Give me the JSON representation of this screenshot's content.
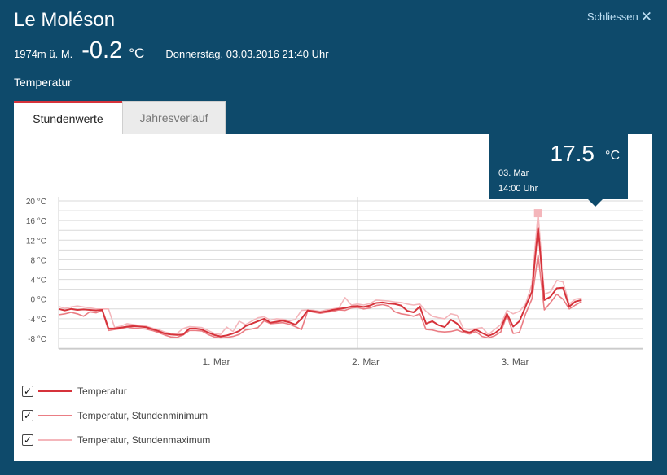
{
  "header": {
    "station": "Le Moléson",
    "close_label": "Schliessen",
    "close_icon": "✕",
    "altitude": "1974m ü. M.",
    "current_temp": "-0.2",
    "unit": "°C",
    "datetime": "Donnerstag, 03.03.2016 21:40 Uhr",
    "parameter": "Temperatur"
  },
  "tabs": [
    {
      "label": "Stundenwerte",
      "active": true
    },
    {
      "label": "Jahresverlauf",
      "active": false
    }
  ],
  "tooltip": {
    "value": "17.5",
    "unit": "°C",
    "date": "03. Mar",
    "time": "14:00 Uhr"
  },
  "legend": [
    {
      "label": "Temperatur",
      "checked": true,
      "color": "#d6333b"
    },
    {
      "label": "Temperatur, Stundenminimum",
      "checked": true,
      "color": "#ea7d84"
    },
    {
      "label": "Temperatur, Stundenmaximum",
      "checked": true,
      "color": "#f4b6bb"
    }
  ],
  "chart_data": {
    "type": "line",
    "x_unit": "hours since 29. Feb 00:00",
    "y_ticks": [
      "20 °C",
      "16 °C",
      "12 °C",
      "8 °C",
      "4 °C",
      "0 °C",
      "-4 °C",
      "-8 °C"
    ],
    "y_tick_values": [
      20,
      16,
      12,
      8,
      4,
      0,
      -4,
      -8
    ],
    "ylim": [
      -11,
      22
    ],
    "xlim": [
      0,
      86
    ],
    "x_ticks": [
      {
        "label": "1. Mar",
        "x": 24
      },
      {
        "label": "2. Mar",
        "x": 48
      },
      {
        "label": "3. Mar",
        "x": 72
      }
    ],
    "vertical_gridlines": [
      0,
      24,
      48,
      72
    ],
    "highlight": {
      "x": 86,
      "y": 17.5
    },
    "series": [
      {
        "name": "Temperatur",
        "color": "#d6333b",
        "values": [
          [
            0,
            -2.0
          ],
          [
            1,
            -2.3
          ],
          [
            2,
            -2.0
          ],
          [
            3,
            -2.2
          ],
          [
            4,
            -2.1
          ],
          [
            5,
            -2.2
          ],
          [
            6,
            -2.3
          ],
          [
            7,
            -2.2
          ],
          [
            8,
            -6.0
          ],
          [
            9,
            -6.0
          ],
          [
            10,
            -5.8
          ],
          [
            11,
            -5.6
          ],
          [
            12,
            -5.5
          ],
          [
            13,
            -5.6
          ],
          [
            14,
            -5.7
          ],
          [
            15,
            -6.1
          ],
          [
            16,
            -6.5
          ],
          [
            17,
            -7.0
          ],
          [
            18,
            -7.2
          ],
          [
            19,
            -7.3
          ],
          [
            20,
            -7.2
          ],
          [
            21,
            -6.0
          ],
          [
            22,
            -6.0
          ],
          [
            23,
            -6.2
          ],
          [
            24,
            -6.8
          ],
          [
            25,
            -7.3
          ],
          [
            26,
            -7.6
          ],
          [
            27,
            -7.4
          ],
          [
            28,
            -7.0
          ],
          [
            29,
            -6.5
          ],
          [
            30,
            -5.5
          ],
          [
            31,
            -5.0
          ],
          [
            32,
            -4.5
          ],
          [
            33,
            -4.0
          ],
          [
            34,
            -4.8
          ],
          [
            35,
            -4.6
          ],
          [
            36,
            -4.4
          ],
          [
            37,
            -4.7
          ],
          [
            38,
            -5.2
          ],
          [
            39,
            -4.0
          ],
          [
            40,
            -2.3
          ],
          [
            41,
            -2.5
          ],
          [
            42,
            -2.7
          ],
          [
            43,
            -2.5
          ],
          [
            44,
            -2.2
          ],
          [
            45,
            -2.0
          ],
          [
            46,
            -1.8
          ],
          [
            47,
            -1.5
          ],
          [
            48,
            -1.4
          ],
          [
            49,
            -1.6
          ],
          [
            50,
            -1.3
          ],
          [
            51,
            -0.8
          ],
          [
            52,
            -0.7
          ],
          [
            53,
            -0.9
          ],
          [
            54,
            -1.0
          ],
          [
            55,
            -1.3
          ],
          [
            56,
            -2.4
          ],
          [
            57,
            -2.7
          ],
          [
            58,
            -1.5
          ],
          [
            59,
            -5.0
          ],
          [
            60,
            -4.5
          ],
          [
            61,
            -5.3
          ],
          [
            62,
            -5.7
          ],
          [
            63,
            -4.2
          ],
          [
            64,
            -5.0
          ],
          [
            65,
            -6.5
          ],
          [
            66,
            -6.8
          ],
          [
            67,
            -6.2
          ],
          [
            68,
            -6.9
          ],
          [
            69,
            -7.5
          ],
          [
            70,
            -7.0
          ],
          [
            71,
            -6.0
          ],
          [
            72,
            -3.0
          ],
          [
            73,
            -5.6
          ],
          [
            74,
            -4.5
          ],
          [
            75,
            -1.5
          ],
          [
            76,
            1.5
          ],
          [
            77,
            14.5
          ],
          [
            78,
            -0.2
          ],
          [
            79,
            0.5
          ],
          [
            80,
            2.2
          ],
          [
            81,
            2.3
          ],
          [
            82,
            -1.5
          ],
          [
            83,
            -0.5
          ],
          [
            84,
            -0.2
          ]
        ]
      },
      {
        "name": "Temperatur, Stundenminimum",
        "color": "#ea7d84",
        "values": [
          [
            0,
            -3.2
          ],
          [
            1,
            -3.0
          ],
          [
            2,
            -2.7
          ],
          [
            3,
            -3.0
          ],
          [
            4,
            -3.5
          ],
          [
            5,
            -2.6
          ],
          [
            6,
            -2.8
          ],
          [
            7,
            -2.3
          ],
          [
            8,
            -6.4
          ],
          [
            9,
            -6.2
          ],
          [
            10,
            -6.0
          ],
          [
            11,
            -5.7
          ],
          [
            12,
            -5.9
          ],
          [
            13,
            -6.0
          ],
          [
            14,
            -6.1
          ],
          [
            15,
            -6.4
          ],
          [
            16,
            -6.8
          ],
          [
            17,
            -7.3
          ],
          [
            18,
            -7.7
          ],
          [
            19,
            -7.8
          ],
          [
            20,
            -7.3
          ],
          [
            21,
            -6.4
          ],
          [
            22,
            -6.4
          ],
          [
            23,
            -6.5
          ],
          [
            24,
            -7.2
          ],
          [
            25,
            -7.7
          ],
          [
            26,
            -7.9
          ],
          [
            27,
            -7.8
          ],
          [
            28,
            -7.6
          ],
          [
            29,
            -7.2
          ],
          [
            30,
            -6.3
          ],
          [
            31,
            -6.1
          ],
          [
            32,
            -5.8
          ],
          [
            33,
            -4.4
          ],
          [
            34,
            -5.0
          ],
          [
            35,
            -4.9
          ],
          [
            36,
            -4.8
          ],
          [
            37,
            -5.1
          ],
          [
            38,
            -5.6
          ],
          [
            39,
            -6.2
          ],
          [
            40,
            -2.4
          ],
          [
            41,
            -2.7
          ],
          [
            42,
            -2.9
          ],
          [
            43,
            -2.7
          ],
          [
            44,
            -2.5
          ],
          [
            45,
            -2.2
          ],
          [
            46,
            -2.3
          ],
          [
            47,
            -1.8
          ],
          [
            48,
            -1.7
          ],
          [
            49,
            -2.0
          ],
          [
            50,
            -1.8
          ],
          [
            51,
            -1.3
          ],
          [
            52,
            -1.1
          ],
          [
            53,
            -1.4
          ],
          [
            54,
            -2.6
          ],
          [
            55,
            -3.0
          ],
          [
            56,
            -3.2
          ],
          [
            57,
            -3.5
          ],
          [
            58,
            -3.0
          ],
          [
            59,
            -6.2
          ],
          [
            60,
            -6.3
          ],
          [
            61,
            -6.6
          ],
          [
            62,
            -6.7
          ],
          [
            63,
            -6.6
          ],
          [
            64,
            -6.3
          ],
          [
            65,
            -6.8
          ],
          [
            66,
            -7.1
          ],
          [
            67,
            -6.6
          ],
          [
            68,
            -7.6
          ],
          [
            69,
            -7.9
          ],
          [
            70,
            -7.5
          ],
          [
            71,
            -6.7
          ],
          [
            72,
            -3.3
          ],
          [
            73,
            -7.0
          ],
          [
            74,
            -6.8
          ],
          [
            75,
            -3.0
          ],
          [
            76,
            0.0
          ],
          [
            77,
            9.0
          ],
          [
            78,
            -2.2
          ],
          [
            79,
            -0.7
          ],
          [
            80,
            1.0
          ],
          [
            81,
            0.0
          ],
          [
            82,
            -2.0
          ],
          [
            83,
            -1.2
          ],
          [
            84,
            -0.5
          ]
        ]
      },
      {
        "name": "Temperatur, Stundenmaximum",
        "color": "#f4b6bb",
        "values": [
          [
            0,
            -1.5
          ],
          [
            1,
            -1.9
          ],
          [
            2,
            -1.6
          ],
          [
            3,
            -1.4
          ],
          [
            4,
            -1.6
          ],
          [
            5,
            -1.8
          ],
          [
            6,
            -2.0
          ],
          [
            7,
            -2.0
          ],
          [
            8,
            -2.0
          ],
          [
            9,
            -5.8
          ],
          [
            10,
            -5.5
          ],
          [
            11,
            -5.0
          ],
          [
            12,
            -5.2
          ],
          [
            13,
            -5.4
          ],
          [
            14,
            -5.5
          ],
          [
            15,
            -5.9
          ],
          [
            16,
            -6.2
          ],
          [
            17,
            -6.7
          ],
          [
            18,
            -7.0
          ],
          [
            19,
            -7.0
          ],
          [
            20,
            -6.0
          ],
          [
            21,
            -5.6
          ],
          [
            22,
            -5.7
          ],
          [
            23,
            -5.8
          ],
          [
            24,
            -6.4
          ],
          [
            25,
            -7.0
          ],
          [
            26,
            -7.2
          ],
          [
            27,
            -5.7
          ],
          [
            28,
            -6.6
          ],
          [
            29,
            -4.5
          ],
          [
            30,
            -5.2
          ],
          [
            31,
            -4.5
          ],
          [
            32,
            -3.8
          ],
          [
            33,
            -3.6
          ],
          [
            34,
            -4.3
          ],
          [
            35,
            -4.0
          ],
          [
            36,
            -4.1
          ],
          [
            37,
            -4.4
          ],
          [
            38,
            -4.2
          ],
          [
            39,
            -2.3
          ],
          [
            40,
            -2.2
          ],
          [
            41,
            -2.3
          ],
          [
            42,
            -2.5
          ],
          [
            43,
            -2.2
          ],
          [
            44,
            -2.0
          ],
          [
            45,
            -1.8
          ],
          [
            46,
            0.3
          ],
          [
            47,
            -1.2
          ],
          [
            48,
            -1.0
          ],
          [
            49,
            -1.2
          ],
          [
            50,
            -0.9
          ],
          [
            51,
            -0.2
          ],
          [
            52,
            -0.3
          ],
          [
            53,
            -0.4
          ],
          [
            54,
            -0.6
          ],
          [
            55,
            -0.7
          ],
          [
            56,
            -1.0
          ],
          [
            57,
            -1.2
          ],
          [
            58,
            -1.0
          ],
          [
            59,
            -2.5
          ],
          [
            60,
            -3.5
          ],
          [
            61,
            -3.8
          ],
          [
            62,
            -4.0
          ],
          [
            63,
            -3.0
          ],
          [
            64,
            -3.3
          ],
          [
            65,
            -6.0
          ],
          [
            66,
            -6.2
          ],
          [
            67,
            -6.0
          ],
          [
            68,
            -5.8
          ],
          [
            69,
            -7.2
          ],
          [
            70,
            -6.2
          ],
          [
            71,
            -5.2
          ],
          [
            72,
            -2.3
          ],
          [
            73,
            -3.0
          ],
          [
            74,
            -2.5
          ],
          [
            75,
            -1.0
          ],
          [
            76,
            3.0
          ],
          [
            77,
            17.5
          ],
          [
            78,
            1.0
          ],
          [
            79,
            1.5
          ],
          [
            80,
            3.8
          ],
          [
            81,
            3.5
          ],
          [
            82,
            -1.0
          ],
          [
            83,
            0.0
          ],
          [
            84,
            0.2
          ]
        ]
      }
    ]
  }
}
